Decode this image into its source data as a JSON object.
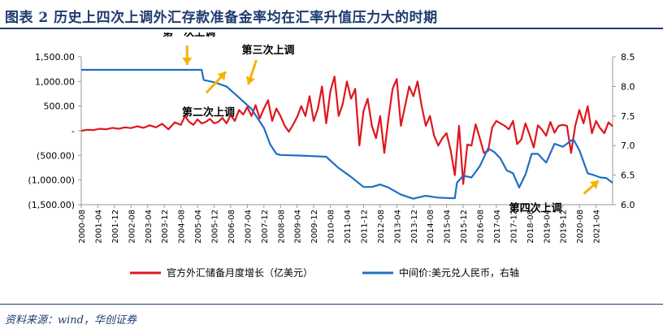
{
  "header": {
    "title": "图表 2   历史上四次上调外汇存款准备金率均在汇率升值压力大的时期"
  },
  "footer": {
    "source": "资料来源：wind，华创证券"
  },
  "colors": {
    "title": "#1f3b70",
    "reserves_line": "#e0161d",
    "fx_line": "#1f6fc4",
    "annotation_arrow": "#f5b400"
  },
  "chart_data": {
    "type": "line",
    "x_ticks": [
      "2000-08",
      "2001-04",
      "2001-12",
      "2002-08",
      "2003-04",
      "2003-12",
      "2004-08",
      "2005-04",
      "2005-12",
      "2006-08",
      "2007-04",
      "2007-12",
      "2008-08",
      "2009-04",
      "2009-12",
      "2010-08",
      "2011-04",
      "2011-12",
      "2012-08",
      "2013-04",
      "2013-12",
      "2014-08",
      "2015-04",
      "2015-12",
      "2016-08",
      "2017-04",
      "2017-12",
      "2018-08",
      "2019-04",
      "2019-12",
      "2020-08",
      "2021-04"
    ],
    "y_left": {
      "ylim": [
        -1500,
        1500
      ],
      "ticks": [
        1500,
        1000,
        500,
        0,
        -500,
        -1000,
        -1500
      ],
      "tick_labels": [
        "1,500.00",
        "1,000.00",
        "500.00",
        "-",
        "(500.00)",
        "(1,000.00)",
        "(1,500.00)"
      ]
    },
    "y_right": {
      "ylim": [
        6.0,
        8.5
      ],
      "ticks": [
        8.5,
        8.0,
        7.5,
        7.0,
        6.5,
        6.0
      ],
      "tick_labels": [
        "8.5",
        "8.0",
        "7.5",
        "7.0",
        "6.5",
        "6.0"
      ]
    },
    "series": [
      {
        "name": "官方外汇储备月度增长（亿美元）",
        "axis": "left",
        "color": "#e0161d",
        "points": [
          [
            "2000-08",
            0
          ],
          [
            "2000-11",
            20
          ],
          [
            "2001-02",
            15
          ],
          [
            "2001-05",
            40
          ],
          [
            "2001-08",
            30
          ],
          [
            "2001-11",
            60
          ],
          [
            "2002-02",
            40
          ],
          [
            "2002-05",
            70
          ],
          [
            "2002-08",
            55
          ],
          [
            "2002-11",
            90
          ],
          [
            "2003-02",
            60
          ],
          [
            "2003-05",
            110
          ],
          [
            "2003-08",
            70
          ],
          [
            "2003-11",
            140
          ],
          [
            "2004-02",
            30
          ],
          [
            "2004-05",
            170
          ],
          [
            "2004-08",
            120
          ],
          [
            "2004-10",
            300
          ],
          [
            "2004-12",
            180
          ],
          [
            "2005-02",
            120
          ],
          [
            "2005-04",
            230
          ],
          [
            "2005-06",
            150
          ],
          [
            "2005-08",
            180
          ],
          [
            "2005-10",
            240
          ],
          [
            "2005-12",
            150
          ],
          [
            "2006-02",
            180
          ],
          [
            "2006-04",
            260
          ],
          [
            "2006-06",
            150
          ],
          [
            "2006-08",
            320
          ],
          [
            "2006-10",
            200
          ],
          [
            "2006-12",
            420
          ],
          [
            "2007-02",
            330
          ],
          [
            "2007-04",
            480
          ],
          [
            "2007-06",
            300
          ],
          [
            "2007-08",
            520
          ],
          [
            "2007-10",
            250
          ],
          [
            "2007-12",
            450
          ],
          [
            "2008-02",
            620
          ],
          [
            "2008-04",
            200
          ],
          [
            "2008-06",
            450
          ],
          [
            "2008-08",
            300
          ],
          [
            "2008-10",
            100
          ],
          [
            "2008-12",
            -20
          ],
          [
            "2009-02",
            120
          ],
          [
            "2009-04",
            280
          ],
          [
            "2009-06",
            500
          ],
          [
            "2009-08",
            300
          ],
          [
            "2009-10",
            700
          ],
          [
            "2009-12",
            200
          ],
          [
            "2010-02",
            450
          ],
          [
            "2010-04",
            900
          ],
          [
            "2010-06",
            150
          ],
          [
            "2010-08",
            800
          ],
          [
            "2010-10",
            1100
          ],
          [
            "2010-12",
            300
          ],
          [
            "2011-02",
            550
          ],
          [
            "2011-04",
            1000
          ],
          [
            "2011-06",
            650
          ],
          [
            "2011-08",
            850
          ],
          [
            "2011-10",
            -300
          ],
          [
            "2011-12",
            400
          ],
          [
            "2012-02",
            650
          ],
          [
            "2012-04",
            100
          ],
          [
            "2012-06",
            -150
          ],
          [
            "2012-08",
            300
          ],
          [
            "2012-10",
            -450
          ],
          [
            "2012-12",
            250
          ],
          [
            "2013-02",
            850
          ],
          [
            "2013-04",
            1050
          ],
          [
            "2013-06",
            100
          ],
          [
            "2013-08",
            500
          ],
          [
            "2013-10",
            900
          ],
          [
            "2013-12",
            700
          ],
          [
            "2014-02",
            1000
          ],
          [
            "2014-04",
            500
          ],
          [
            "2014-06",
            100
          ],
          [
            "2014-08",
            300
          ],
          [
            "2014-10",
            -100
          ],
          [
            "2014-12",
            -300
          ],
          [
            "2015-02",
            -150
          ],
          [
            "2015-04",
            -50
          ],
          [
            "2015-06",
            -400
          ],
          [
            "2015-08",
            -900
          ],
          [
            "2015-10",
            100
          ],
          [
            "2015-12",
            -1080
          ],
          [
            "2016-02",
            -280
          ],
          [
            "2016-04",
            -300
          ],
          [
            "2016-06",
            130
          ],
          [
            "2016-08",
            -150
          ],
          [
            "2016-10",
            -450
          ],
          [
            "2016-12",
            -410
          ],
          [
            "2017-02",
            70
          ],
          [
            "2017-04",
            200
          ],
          [
            "2017-06",
            150
          ],
          [
            "2017-08",
            100
          ],
          [
            "2017-10",
            30
          ],
          [
            "2017-12",
            200
          ],
          [
            "2018-02",
            -270
          ],
          [
            "2018-04",
            -180
          ],
          [
            "2018-06",
            150
          ],
          [
            "2018-08",
            -80
          ],
          [
            "2018-10",
            -340
          ],
          [
            "2018-12",
            110
          ],
          [
            "2019-02",
            20
          ],
          [
            "2019-04",
            -100
          ],
          [
            "2019-06",
            180
          ],
          [
            "2019-08",
            -40
          ],
          [
            "2019-10",
            100
          ],
          [
            "2019-12",
            120
          ],
          [
            "2020-02",
            100
          ],
          [
            "2020-04",
            -450
          ],
          [
            "2020-06",
            100
          ],
          [
            "2020-08",
            420
          ],
          [
            "2020-10",
            150
          ],
          [
            "2020-12",
            500
          ],
          [
            "2021-02",
            -50
          ],
          [
            "2021-04",
            200
          ],
          [
            "2021-06",
            50
          ],
          [
            "2021-08",
            -50
          ],
          [
            "2021-10",
            170
          ],
          [
            "2021-12",
            90
          ]
        ]
      },
      {
        "name": "中间价:美元兑人民币，右轴",
        "axis": "right",
        "color": "#1f6fc4",
        "points": [
          [
            "2000-08",
            8.28
          ],
          [
            "2001-08",
            8.28
          ],
          [
            "2002-08",
            8.28
          ],
          [
            "2003-08",
            8.28
          ],
          [
            "2004-08",
            8.28
          ],
          [
            "2005-06",
            8.28
          ],
          [
            "2005-07",
            8.11
          ],
          [
            "2005-12",
            8.07
          ],
          [
            "2006-06",
            8.0
          ],
          [
            "2006-12",
            7.81
          ],
          [
            "2007-06",
            7.62
          ],
          [
            "2007-12",
            7.3
          ],
          [
            "2008-03",
            7.02
          ],
          [
            "2008-06",
            6.86
          ],
          [
            "2008-08",
            6.84
          ],
          [
            "2009-06",
            6.83
          ],
          [
            "2010-06",
            6.81
          ],
          [
            "2010-12",
            6.62
          ],
          [
            "2011-06",
            6.47
          ],
          [
            "2011-12",
            6.3
          ],
          [
            "2012-04",
            6.3
          ],
          [
            "2012-08",
            6.34
          ],
          [
            "2012-12",
            6.29
          ],
          [
            "2013-06",
            6.17
          ],
          [
            "2013-12",
            6.1
          ],
          [
            "2014-02",
            6.12
          ],
          [
            "2014-06",
            6.15
          ],
          [
            "2014-12",
            6.12
          ],
          [
            "2015-06",
            6.11
          ],
          [
            "2015-08",
            6.11
          ],
          [
            "2015-09",
            6.37
          ],
          [
            "2015-12",
            6.49
          ],
          [
            "2016-04",
            6.46
          ],
          [
            "2016-08",
            6.65
          ],
          [
            "2016-12",
            6.95
          ],
          [
            "2017-03",
            6.89
          ],
          [
            "2017-06",
            6.78
          ],
          [
            "2017-09",
            6.58
          ],
          [
            "2017-12",
            6.53
          ],
          [
            "2018-03",
            6.29
          ],
          [
            "2018-06",
            6.51
          ],
          [
            "2018-09",
            6.86
          ],
          [
            "2018-12",
            6.86
          ],
          [
            "2019-04",
            6.71
          ],
          [
            "2019-08",
            7.03
          ],
          [
            "2019-12",
            6.98
          ],
          [
            "2020-05",
            7.11
          ],
          [
            "2020-08",
            6.92
          ],
          [
            "2020-12",
            6.53
          ],
          [
            "2021-03",
            6.5
          ],
          [
            "2021-06",
            6.46
          ],
          [
            "2021-09",
            6.45
          ],
          [
            "2021-12",
            6.37
          ]
        ]
      }
    ],
    "annotations": [
      {
        "text": "第一次上调",
        "date": "2004-11",
        "value": 8.28,
        "axis": "right"
      },
      {
        "text": "第三次上调",
        "date": "2007-06",
        "value": 7.62,
        "axis": "right"
      },
      {
        "text": "第二次上调",
        "date": "2006-08",
        "value": 8.0,
        "axis": "right"
      },
      {
        "text": "第四次上调",
        "date": "2021-06",
        "value": 6.46,
        "axis": "right"
      }
    ],
    "legend_position": "bottom"
  }
}
